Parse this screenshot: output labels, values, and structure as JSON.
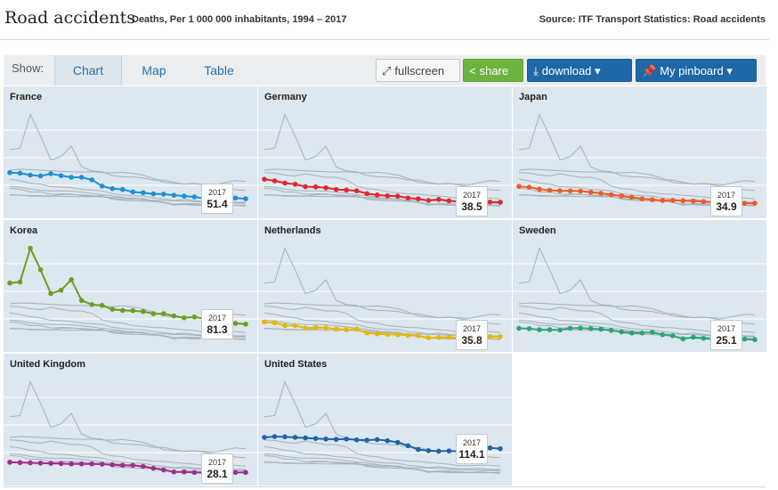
{
  "header": {
    "title": "Road accidents",
    "subtitle": "Deaths, Per 1 000 000 inhabitants, 1994 – 2017",
    "source": "Source: ITF Transport Statistics: Road accidents"
  },
  "toolbar": {
    "show_label": "Show:",
    "tabs": [
      "Chart",
      "Map",
      "Table"
    ],
    "active_tab": "Chart",
    "fullscreen_label": "fullscreen",
    "share_label": "share",
    "download_label": "download",
    "pinboard_label": "My pinboard"
  },
  "colors": {
    "France": "#1e90d6",
    "Germany": "#e0282e",
    "Japan": "#ee5a24",
    "Korea": "#6d9d23",
    "Netherlands": "#e6b800",
    "Sweden": "#2aa676",
    "United Kingdom": "#a02d8c",
    "United States": "#1f64a8",
    "background_line": "#a7b1ba"
  },
  "chart_data": {
    "type": "line",
    "layout": "small-multiples",
    "x": [
      1994,
      1995,
      1996,
      1997,
      1998,
      1999,
      2000,
      2001,
      2002,
      2003,
      2004,
      2005,
      2006,
      2007,
      2008,
      2009,
      2010,
      2011,
      2012,
      2013,
      2014,
      2015,
      2016,
      2017
    ],
    "ylim": [
      0,
      400
    ],
    "tooltip_year": "2017",
    "series": [
      {
        "name": "France",
        "values": [
          146,
          144,
          137,
          134,
          142,
          135,
          129,
          129,
          120,
          97,
          88,
          85,
          76,
          73,
          69,
          68,
          64,
          61,
          58,
          52,
          53,
          54,
          54,
          51.4
        ],
        "tooltip": "51.4"
      },
      {
        "name": "Germany",
        "values": [
          122,
          116,
          108,
          104,
          95,
          94,
          91,
          85,
          83,
          80,
          70,
          65,
          62,
          61,
          54,
          51,
          45,
          49,
          44,
          41,
          42,
          43,
          39,
          38.5
        ],
        "tooltip": "38.5"
      },
      {
        "name": "Japan",
        "values": [
          96,
          93,
          86,
          82,
          80,
          80,
          79,
          75,
          71,
          66,
          62,
          57,
          51,
          48,
          45,
          46,
          44,
          43,
          41,
          38,
          37,
          37,
          35,
          34.9
        ],
        "tooltip": "34.9"
      },
      {
        "name": "Korea",
        "values": [
          230,
          234,
          356,
          278,
          192,
          204,
          242,
          167,
          152,
          149,
          135,
          131,
          130,
          127,
          119,
          119,
          111,
          104,
          107,
          101,
          95,
          91,
          84,
          81.3
        ],
        "tooltip": "81.3"
      },
      {
        "name": "Netherlands",
        "values": [
          89,
          86,
          76,
          76,
          67,
          69,
          68,
          63,
          61,
          63,
          49,
          46,
          44,
          43,
          41,
          39,
          32,
          33,
          34,
          31,
          28,
          31,
          36,
          35.8
        ],
        "tooltip": "35.8"
      },
      {
        "name": "Sweden",
        "values": [
          66,
          65,
          61,
          61,
          60,
          66,
          67,
          65,
          63,
          59,
          53,
          49,
          49,
          52,
          43,
          39,
          28,
          34,
          30,
          27,
          28,
          27,
          27,
          25.1
        ],
        "tooltip": "25.1"
      },
      {
        "name": "United Kingdom",
        "values": [
          65,
          64,
          63,
          62,
          61,
          60,
          59,
          59,
          59,
          58,
          56,
          54,
          54,
          50,
          43,
          37,
          30,
          30,
          28,
          27,
          28,
          28,
          28,
          28.1
        ],
        "tooltip": "28.1"
      },
      {
        "name": "United States",
        "values": [
          155,
          158,
          157,
          155,
          153,
          151,
          149,
          148,
          149,
          146,
          145,
          147,
          143,
          137,
          125,
          111,
          107,
          105,
          106,
          104,
          102,
          110,
          117,
          114.1
        ],
        "tooltip": "114.1"
      }
    ]
  }
}
